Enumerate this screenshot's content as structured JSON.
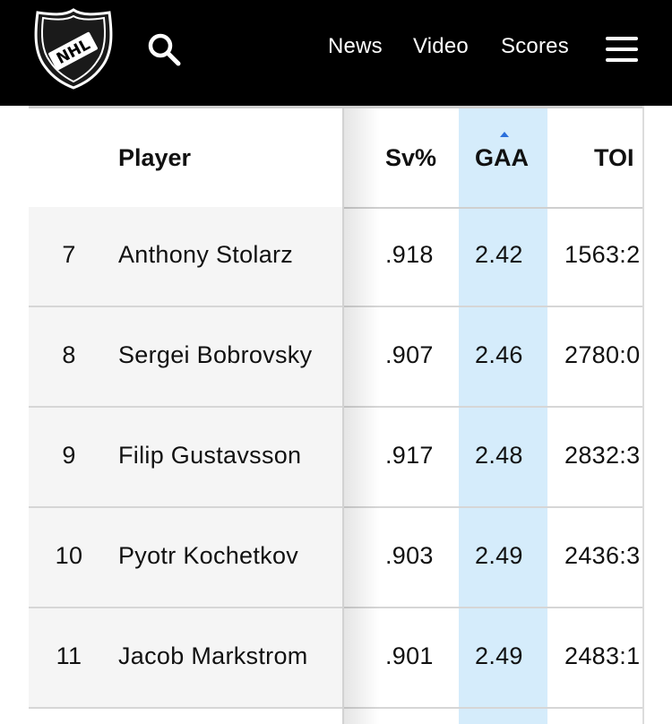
{
  "header": {
    "logo_text": "NHL",
    "nav": [
      "News",
      "Video",
      "Scores"
    ]
  },
  "colors": {
    "topbar": "#000000",
    "sort_highlight": "#d5ecfb",
    "sort_arrow": "#2a6fdb"
  },
  "icons": [
    "nhl-logo-icon",
    "search-icon",
    "hamburger-menu-icon",
    "sort-ascending-icon"
  ],
  "table": {
    "sorted_by": "GAA",
    "sort_direction": "ascending",
    "columns": {
      "player": "Player",
      "sv": "Sv%",
      "gaa": "GAA",
      "toi": "TOI"
    },
    "rows": [
      {
        "rank": "7",
        "player": "Anthony Stolarz",
        "sv": ".918",
        "gaa": "2.42",
        "toi": "1563:2"
      },
      {
        "rank": "8",
        "player": "Sergei Bobrovsky",
        "sv": ".907",
        "gaa": "2.46",
        "toi": "2780:0"
      },
      {
        "rank": "9",
        "player": "Filip Gustavsson",
        "sv": ".917",
        "gaa": "2.48",
        "toi": "2832:3"
      },
      {
        "rank": "10",
        "player": "Pyotr Kochetkov",
        "sv": ".903",
        "gaa": "2.49",
        "toi": "2436:3"
      },
      {
        "rank": "11",
        "player": "Jacob Markstrom",
        "sv": ".901",
        "gaa": "2.49",
        "toi": "2483:1"
      }
    ]
  }
}
